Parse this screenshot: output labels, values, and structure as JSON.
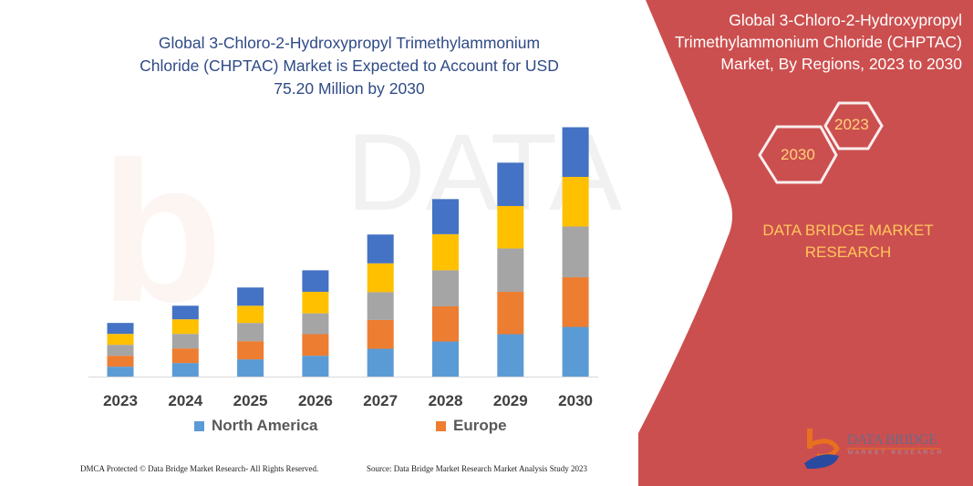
{
  "title": "Global 3-Chloro-2-Hydroxypropyl Trimethylammonium Chloride (CHPTAC) Market is Expected to Account for USD 75.20 Million by 2030",
  "title_lines": [
    "Global 3-Chloro-2-Hydroxypropyl Trimethylammonium",
    "Chloride (CHPTAC) Market is Expected to Account for USD",
    "75.20 Million by 2030"
  ],
  "side_panel": {
    "title_lines": [
      "Global 3-Chloro-2-Hydroxypropyl",
      "Trimethylammonium Chloride (CHPTAC)",
      "Market, By Regions, 2023 to 2030"
    ],
    "hex_1": "2023",
    "hex_2": "2030",
    "brand_lines": [
      "DATA BRIDGE MARKET",
      "RESEARCH"
    ],
    "logo_text": "DATA BRIDGE",
    "logo_sub": "MARKET RESEARCH",
    "color": "#cc4f4f"
  },
  "footer": {
    "left": "DMCA Protected © Data Bridge Market Research-  All Rights Reserved.",
    "right": "Source: Data Bridge Market Research  Market Analysis Study 2023"
  },
  "chart_data": {
    "type": "bar",
    "stacked": true,
    "categories": [
      "2023",
      "2024",
      "2025",
      "2026",
      "2027",
      "2028",
      "2029",
      "2030"
    ],
    "series": [
      {
        "name": "North America",
        "color": "#5b9bd5",
        "values": [
          3.0,
          4.1,
          5.2,
          6.3,
          8.4,
          10.6,
          12.8,
          15.0
        ]
      },
      {
        "name": "Europe",
        "color": "#ed7d31",
        "values": [
          3.3,
          4.4,
          5.5,
          6.5,
          8.7,
          10.6,
          12.8,
          15.0
        ]
      },
      {
        "color": "#a5a5a5",
        "values": [
          3.3,
          4.4,
          5.5,
          6.3,
          8.4,
          10.9,
          13.1,
          15.3
        ]
      },
      {
        "color": "#ffc000",
        "values": [
          3.3,
          4.4,
          5.2,
          6.5,
          8.7,
          10.9,
          12.8,
          15.0
        ]
      },
      {
        "color": "#4472c4",
        "values": [
          3.3,
          4.1,
          5.5,
          6.5,
          8.7,
          10.6,
          13.1,
          15.0
        ]
      }
    ],
    "ylim": [
      0,
      76
    ],
    "grid": false,
    "legend_position": "bottom"
  }
}
